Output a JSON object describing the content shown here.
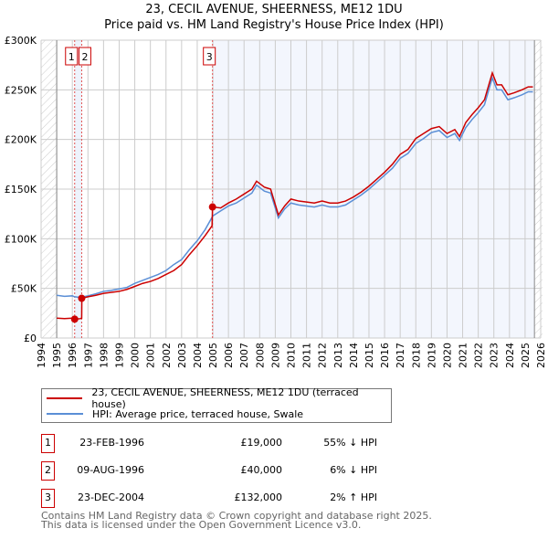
{
  "chart_data": {
    "type": "line",
    "title": "23, CECIL AVENUE, SHEERNESS, ME12 1DU",
    "subtitle": "Price paid vs. HM Land Registry's House Price Index (HPI)",
    "xlim": [
      1994,
      2026
    ],
    "ylim": [
      0,
      300000
    ],
    "x_ticks": [
      "1994",
      "1995",
      "1996",
      "1997",
      "1998",
      "1999",
      "2000",
      "2001",
      "2002",
      "2003",
      "2004",
      "2005",
      "2006",
      "2007",
      "2008",
      "2009",
      "2010",
      "2011",
      "2012",
      "2013",
      "2014",
      "2015",
      "2016",
      "2017",
      "2018",
      "2019",
      "2020",
      "2021",
      "2022",
      "2023",
      "2024",
      "2025",
      "2026"
    ],
    "y_ticks": [
      {
        "v": 0,
        "label": "£0"
      },
      {
        "v": 50000,
        "label": "£50K"
      },
      {
        "v": 100000,
        "label": "£100K"
      },
      {
        "v": 150000,
        "label": "£150K"
      },
      {
        "v": 200000,
        "label": "£200K"
      },
      {
        "v": 250000,
        "label": "£250K"
      },
      {
        "v": 300000,
        "label": "£300K"
      }
    ],
    "grid": true,
    "series": [
      {
        "name": "23, CECIL AVENUE, SHEERNESS, ME12 1DU (terraced house)",
        "color": "#cc0000",
        "x": [
          1995,
          1995.5,
          1996.0,
          1996.15,
          1996.5,
          1996.6,
          1996.61,
          1997,
          1997.5,
          1998,
          1998.5,
          1999,
          1999.5,
          2000,
          2000.5,
          2001,
          2001.5,
          2002,
          2002.5,
          2003,
          2003.5,
          2004,
          2004.5,
          2004.95,
          2004.98,
          2005.5,
          2006,
          2006.5,
          2007,
          2007.5,
          2007.8,
          2008.3,
          2008.7,
          2009.2,
          2009.6,
          2010,
          2010.5,
          2011,
          2011.5,
          2012,
          2012.5,
          2013,
          2013.5,
          2014,
          2014.5,
          2015,
          2015.5,
          2016,
          2016.5,
          2017,
          2017.5,
          2018,
          2018.5,
          2019,
          2019.5,
          2020,
          2020.5,
          2020.8,
          2021.2,
          2021.6,
          2022,
          2022.4,
          2022.9,
          2023.2,
          2023.5,
          2023.9,
          2024.3,
          2024.8,
          2025.2,
          2025.5
        ],
        "y": [
          20000,
          19500,
          20000,
          19000,
          19500,
          20000,
          40000,
          41500,
          43000,
          45000,
          46000,
          47000,
          49000,
          52000,
          55000,
          57000,
          60000,
          64000,
          68000,
          74000,
          84000,
          93000,
          103000,
          113000,
          132000,
          131000,
          136000,
          140000,
          145000,
          150000,
          158000,
          152000,
          150000,
          124000,
          133000,
          140000,
          138000,
          137000,
          136000,
          138000,
          136000,
          136000,
          138000,
          142000,
          147000,
          153000,
          160000,
          167000,
          175000,
          185000,
          190000,
          201000,
          206000,
          211000,
          213000,
          206000,
          210000,
          203000,
          217000,
          225000,
          232000,
          240000,
          267000,
          255000,
          255000,
          245000,
          247000,
          250000,
          253000,
          253000
        ]
      },
      {
        "name": "HPI: Average price, terraced house, Swale",
        "color": "#5b8fd6",
        "x": [
          1995,
          1995.5,
          1996.0,
          1996.15,
          1996.5,
          1997,
          1997.5,
          1998,
          1998.5,
          1999,
          1999.5,
          2000,
          2000.5,
          2001,
          2001.5,
          2002,
          2002.5,
          2003,
          2003.5,
          2004,
          2004.5,
          2005,
          2005.5,
          2006,
          2006.5,
          2007,
          2007.5,
          2007.8,
          2008.3,
          2008.7,
          2009.2,
          2009.6,
          2010,
          2010.5,
          2011,
          2011.5,
          2012,
          2012.5,
          2013,
          2013.5,
          2014,
          2014.5,
          2015,
          2015.5,
          2016,
          2016.5,
          2017,
          2017.5,
          2018,
          2018.5,
          2019,
          2019.5,
          2020,
          2020.5,
          2020.8,
          2021.2,
          2021.6,
          2022,
          2022.4,
          2022.9,
          2023.2,
          2023.5,
          2023.9,
          2024.3,
          2024.8,
          2025.2,
          2025.5
        ],
        "y": [
          43000,
          42000,
          42500,
          41500,
          41000,
          42500,
          44500,
          47000,
          48000,
          49500,
          51000,
          55000,
          58000,
          61000,
          64000,
          68000,
          74000,
          79000,
          89000,
          98000,
          109000,
          123000,
          128000,
          133000,
          136000,
          141000,
          146000,
          154000,
          148000,
          146000,
          121000,
          130000,
          136000,
          134000,
          133000,
          132000,
          134000,
          132000,
          132000,
          134000,
          139000,
          144000,
          150000,
          157000,
          164000,
          171000,
          181000,
          186000,
          196000,
          201000,
          207000,
          209000,
          202000,
          206000,
          199000,
          212000,
          220000,
          227000,
          235000,
          262000,
          250000,
          250000,
          240000,
          242000,
          245000,
          248000,
          248000
        ]
      }
    ],
    "sales": [
      {
        "n": "1",
        "x": 1996.15,
        "y": 19000
      },
      {
        "n": "2",
        "x": 1996.6,
        "y": 40000
      },
      {
        "n": "3",
        "x": 2004.98,
        "y": 132000
      }
    ],
    "legend_position": "below"
  },
  "table": [
    {
      "n": "1",
      "date": "23-FEB-1996",
      "price": "£19,000",
      "hpi": "55% ↓ HPI"
    },
    {
      "n": "2",
      "date": "09-AUG-1996",
      "price": "£40,000",
      "hpi": "6% ↓ HPI"
    },
    {
      "n": "3",
      "date": "23-DEC-2004",
      "price": "£132,000",
      "hpi": "2% ↑ HPI"
    }
  ],
  "footer": [
    "Contains HM Land Registry data © Crown copyright and database right 2025.",
    "This data is licensed under the Open Government Licence v3.0."
  ]
}
